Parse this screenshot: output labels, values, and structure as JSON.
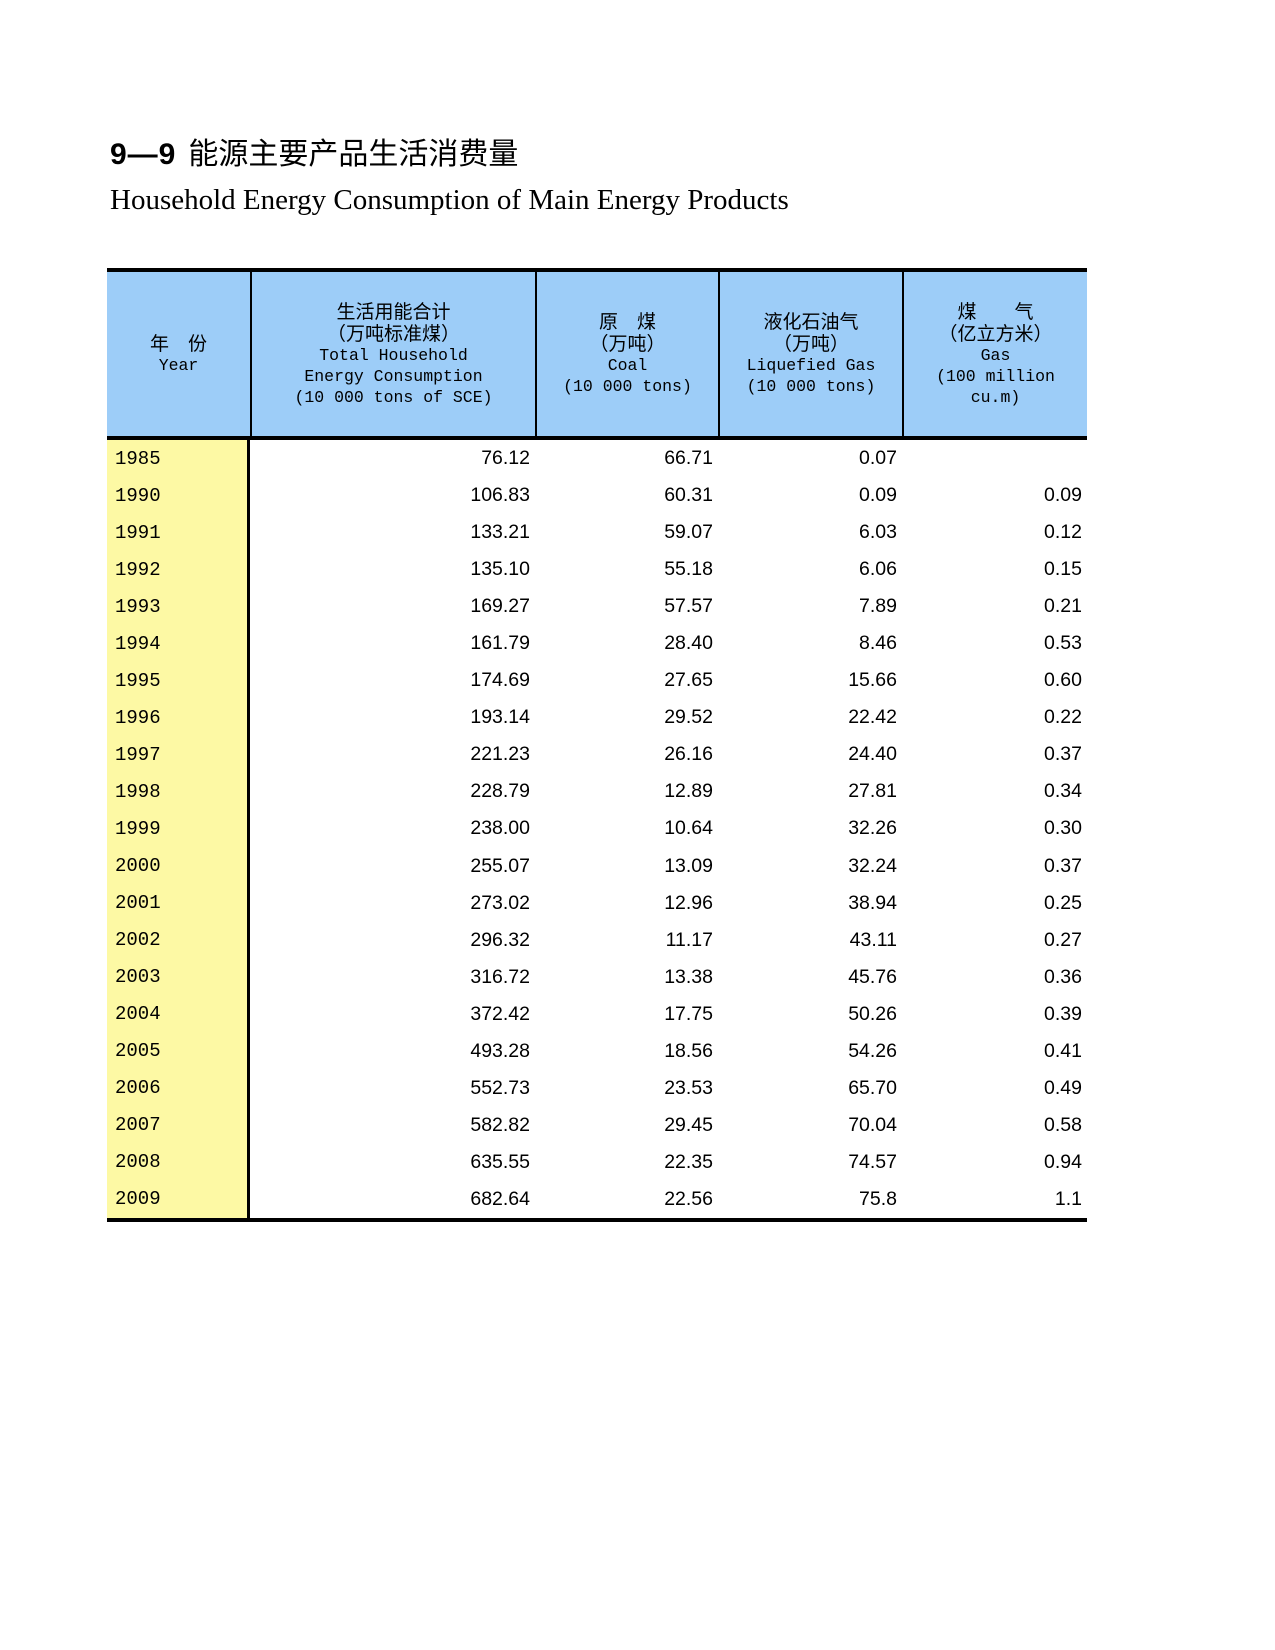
{
  "titles": {
    "number": "9—9",
    "cn": "能源主要产品生活消费量",
    "en": "Household Energy Consumption of Main Energy Products"
  },
  "colors": {
    "header_blue": "#9dcdf8",
    "year_yellow": "#fdf9a4",
    "border_black": "#000000"
  },
  "header": {
    "year_lines": [
      "年　份",
      "Year"
    ],
    "cols": [
      {
        "lines": [
          "生活用能合计",
          "（万吨标准煤）",
          "Total Household",
          "Energy Consumption",
          "(10 000 tons of SCE)"
        ]
      },
      {
        "lines": [
          "原　煤",
          "（万吨）",
          "Coal",
          "(10 000 tons)"
        ]
      },
      {
        "lines": [
          "液化石油气",
          "（万吨）",
          "Liquefied Gas",
          "(10 000 tons)"
        ]
      },
      {
        "lines": [
          "煤　　气",
          "（亿立方米）",
          "Gas",
          "(100 million",
          "cu.m)"
        ]
      }
    ]
  },
  "chart_data": {
    "type": "table",
    "title": "9—9 能源主要产品生活消费量 / Household Energy Consumption of Main Energy Products",
    "columns": [
      "Year",
      "Total Household Energy Consumption (10 000 tons of SCE)",
      "Coal (10 000 tons)",
      "Liquefied Gas (10 000 tons)",
      "Gas (100 million cu.m)"
    ],
    "rows": [
      {
        "year": "1985",
        "values": [
          "76.12",
          "66.71",
          "0.07",
          ""
        ]
      },
      {
        "year": "1990",
        "values": [
          "106.83",
          "60.31",
          "0.09",
          "0.09"
        ]
      },
      {
        "year": "1991",
        "values": [
          "133.21",
          "59.07",
          "6.03",
          "0.12"
        ]
      },
      {
        "year": "1992",
        "values": [
          "135.10",
          "55.18",
          "6.06",
          "0.15"
        ]
      },
      {
        "year": "1993",
        "values": [
          "169.27",
          "57.57",
          "7.89",
          "0.21"
        ]
      },
      {
        "year": "1994",
        "values": [
          "161.79",
          "28.40",
          "8.46",
          "0.53"
        ]
      },
      {
        "year": "1995",
        "values": [
          "174.69",
          "27.65",
          "15.66",
          "0.60"
        ]
      },
      {
        "year": "1996",
        "values": [
          "193.14",
          "29.52",
          "22.42",
          "0.22"
        ]
      },
      {
        "year": "1997",
        "values": [
          "221.23",
          "26.16",
          "24.40",
          "0.37"
        ]
      },
      {
        "year": "1998",
        "values": [
          "228.79",
          "12.89",
          "27.81",
          "0.34"
        ]
      },
      {
        "year": "1999",
        "values": [
          "238.00",
          "10.64",
          "32.26",
          "0.30"
        ]
      },
      {
        "year": "2000",
        "values": [
          "255.07",
          "13.09",
          "32.24",
          "0.37"
        ]
      },
      {
        "year": "2001",
        "values": [
          "273.02",
          "12.96",
          "38.94",
          "0.25"
        ]
      },
      {
        "year": "2002",
        "values": [
          "296.32",
          "11.17",
          "43.11",
          "0.27"
        ]
      },
      {
        "year": "2003",
        "values": [
          "316.72",
          "13.38",
          "45.76",
          "0.36"
        ]
      },
      {
        "year": "2004",
        "values": [
          "372.42",
          "17.75",
          "50.26",
          "0.39"
        ]
      },
      {
        "year": "2005",
        "values": [
          "493.28",
          "18.56",
          "54.26",
          "0.41"
        ]
      },
      {
        "year": "2006",
        "values": [
          "552.73",
          "23.53",
          "65.70",
          "0.49"
        ]
      },
      {
        "year": "2007",
        "values": [
          "582.82",
          "29.45",
          "70.04",
          "0.58"
        ]
      },
      {
        "year": "2008",
        "values": [
          "635.55",
          "22.35",
          "74.57",
          "0.94"
        ]
      },
      {
        "year": "2009",
        "values": [
          "682.64",
          "22.56",
          "75.8",
          "1.1"
        ]
      }
    ]
  }
}
